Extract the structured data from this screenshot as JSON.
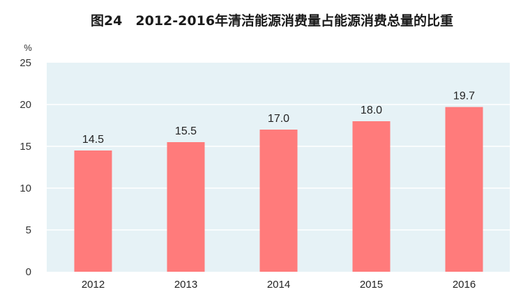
{
  "chart_data": {
    "type": "bar",
    "title": "图24　2012-2016年清洁能源消费量占能源消费总量的比重",
    "ylabel": "%",
    "xlabel": "",
    "categories": [
      "2012",
      "2013",
      "2014",
      "2015",
      "2016"
    ],
    "values": [
      14.5,
      15.5,
      17.0,
      18.0,
      19.7
    ],
    "value_labels": [
      "14.5",
      "15.5",
      "17.0",
      "18.0",
      "19.7"
    ],
    "ylim": [
      0,
      25
    ],
    "yticks": [
      0,
      5,
      10,
      15,
      20,
      25
    ],
    "grid": true,
    "legend": "none",
    "colors": {
      "bar": "#ff7b7b",
      "plot_background": "#e6f2f6",
      "grid": "#ffffff"
    }
  }
}
